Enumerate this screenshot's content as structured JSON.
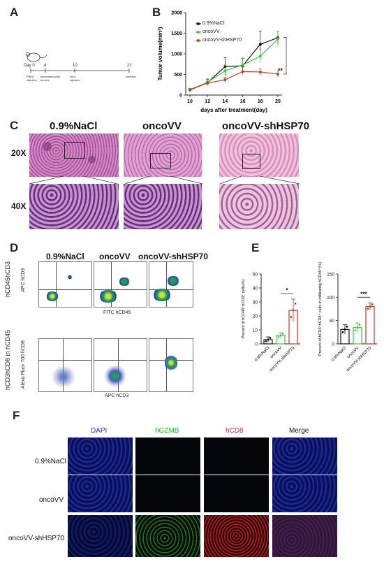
{
  "panels": {
    "A": "A",
    "B": "B",
    "C": "C",
    "D": "D",
    "E": "E",
    "F": "F"
  },
  "panelA": {
    "day0": "Day 0",
    "day4": "4",
    "day10": "10",
    "day21": "21",
    "pbmc": "PBMC\ninjection",
    "subq": "subcutaneously\ntumors",
    "virus": "virus\ninjection",
    "sac": "sacrifice"
  },
  "panelB": {
    "legend": [
      "0.9%NaCl",
      "oncoVV",
      "oncoVV-shHSP70"
    ],
    "significance": "**"
  },
  "chart_data": [
    {
      "type": "line",
      "ylabel": "Tumor volume(mm³)",
      "xlabel": "days after treatment(day)",
      "x": [
        10,
        12,
        14,
        16,
        18,
        20
      ],
      "xticks": [
        "10",
        "12",
        "14",
        "16",
        "18",
        "20"
      ],
      "yticks": [
        "0",
        "500",
        "1000",
        "1500",
        "2000"
      ],
      "ylim": [
        0,
        2000
      ],
      "series": [
        {
          "name": "0.9%NaCl",
          "color": "#111111",
          "values": [
            120,
            300,
            690,
            710,
            1230,
            1390
          ],
          "err": [
            30,
            80,
            220,
            180,
            320,
            150
          ]
        },
        {
          "name": "oncoVV",
          "color": "#3ec43e",
          "values": [
            130,
            310,
            590,
            730,
            940,
            1360
          ],
          "err": [
            30,
            90,
            140,
            170,
            160,
            180
          ]
        },
        {
          "name": "oncoVV-shHSP70",
          "color": "#b5482c",
          "values": [
            130,
            290,
            370,
            570,
            560,
            510
          ],
          "err": [
            30,
            50,
            60,
            90,
            80,
            80
          ]
        }
      ]
    },
    {
      "type": "bar",
      "ylabel": "Precent of hCD45⁺hCD3⁺ cells(%)",
      "categories": [
        "0.9%NaCl",
        "oncoVV",
        "oncoVV-shHSP70"
      ],
      "values": [
        3,
        6,
        24
      ],
      "err": [
        2,
        2,
        8
      ],
      "yticks": [
        "0",
        "10",
        "20",
        "30",
        "40",
        "50"
      ],
      "ylim": [
        0,
        50
      ],
      "significance": "*"
    },
    {
      "type": "bar",
      "ylabel": "Precent of hCD3⁺hCD8⁺ cells in infiltrating hCD45⁺(%)",
      "categories": [
        "0.9%NaCl",
        "oncoVV",
        "oncoVV-shHSP70"
      ],
      "values": [
        31,
        35,
        80
      ],
      "err": [
        10,
        10,
        8
      ],
      "yticks": [
        "0",
        "50",
        "100",
        "150"
      ],
      "ylim": [
        0,
        150
      ],
      "significance": "***"
    }
  ],
  "panelC": {
    "groups": [
      "0.9%NaCl",
      "oncoVV",
      "oncoVV-shHSP70"
    ],
    "rows": [
      "20X",
      "40X"
    ]
  },
  "panelD": {
    "groups": [
      "0.9%NaCl",
      "oncoVV",
      "oncoVV-shHSP70"
    ],
    "row1_ylabel": "hCD45hCD3",
    "row1_yaxis": "APC hCD3",
    "row1_xaxis": "FITC hCD45",
    "row2_ylabel": "hCD3hCD8 in hCD45",
    "row2_yaxis": "Alexa Fluor 700 hCD8",
    "row2_xaxis": "APC hCD3"
  },
  "panelF": {
    "channels": [
      "DAPI",
      "hGZMB",
      "hCD8",
      "Merge"
    ],
    "channel_colors": [
      "#2a2ad8",
      "#2fb82f",
      "#c0306a",
      "#111111"
    ],
    "groups": [
      "0.9%NaCl",
      "oncoVV",
      "oncoVV-shHSP70"
    ]
  }
}
